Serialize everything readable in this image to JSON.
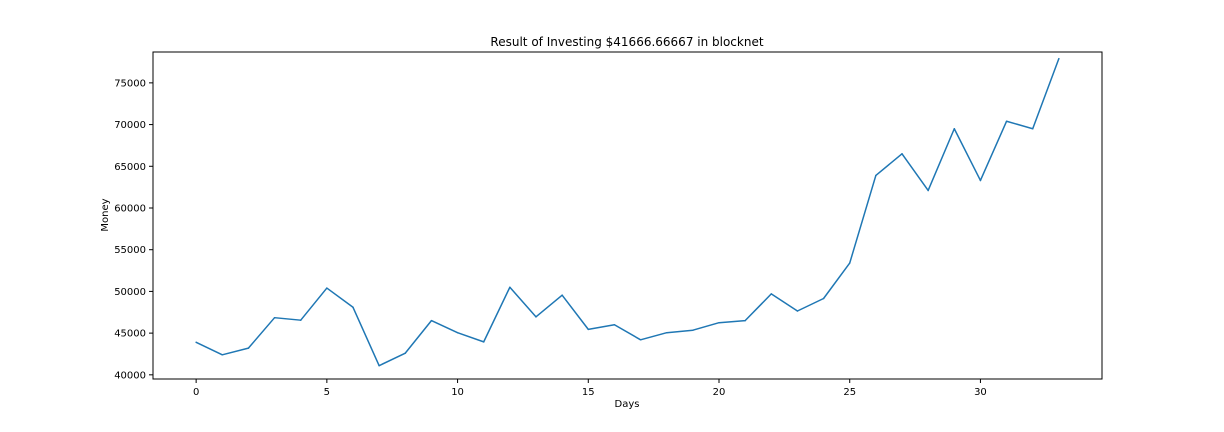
{
  "chart_data": {
    "type": "line",
    "title": "Result of Investing $41666.66667 in blocknet",
    "xlabel": "Days",
    "ylabel": "Money",
    "xlim": [
      -1.65,
      34.65
    ],
    "ylim": [
      39500,
      78700
    ],
    "x_ticks": [
      0,
      5,
      10,
      15,
      20,
      25,
      30
    ],
    "y_ticks": [
      40000,
      45000,
      50000,
      55000,
      60000,
      65000,
      70000,
      75000
    ],
    "x_tick_labels": [
      "0",
      "5",
      "10",
      "15",
      "20",
      "25",
      "30"
    ],
    "y_tick_labels": [
      "40000",
      "45000",
      "50000",
      "55000",
      "60000",
      "65000",
      "70000",
      "75000"
    ],
    "grid": false,
    "series": [
      {
        "color": "#1f77b4",
        "x": [
          0,
          1,
          2,
          3,
          4,
          5,
          6,
          7,
          8,
          9,
          10,
          11,
          12,
          13,
          14,
          15,
          16,
          17,
          18,
          19,
          20,
          21,
          22,
          23,
          24,
          25,
          26,
          27,
          28,
          29,
          30,
          31,
          32,
          33
        ],
        "y": [
          43900,
          42400,
          43200,
          46850,
          46550,
          50400,
          48100,
          41100,
          42600,
          46500,
          45050,
          43950,
          50500,
          46950,
          49550,
          45450,
          46000,
          44200,
          45050,
          45350,
          46250,
          46500,
          49700,
          47650,
          49150,
          53400,
          63900,
          66500,
          62100,
          69500,
          63300,
          70400,
          69500,
          77900
        ]
      }
    ]
  }
}
